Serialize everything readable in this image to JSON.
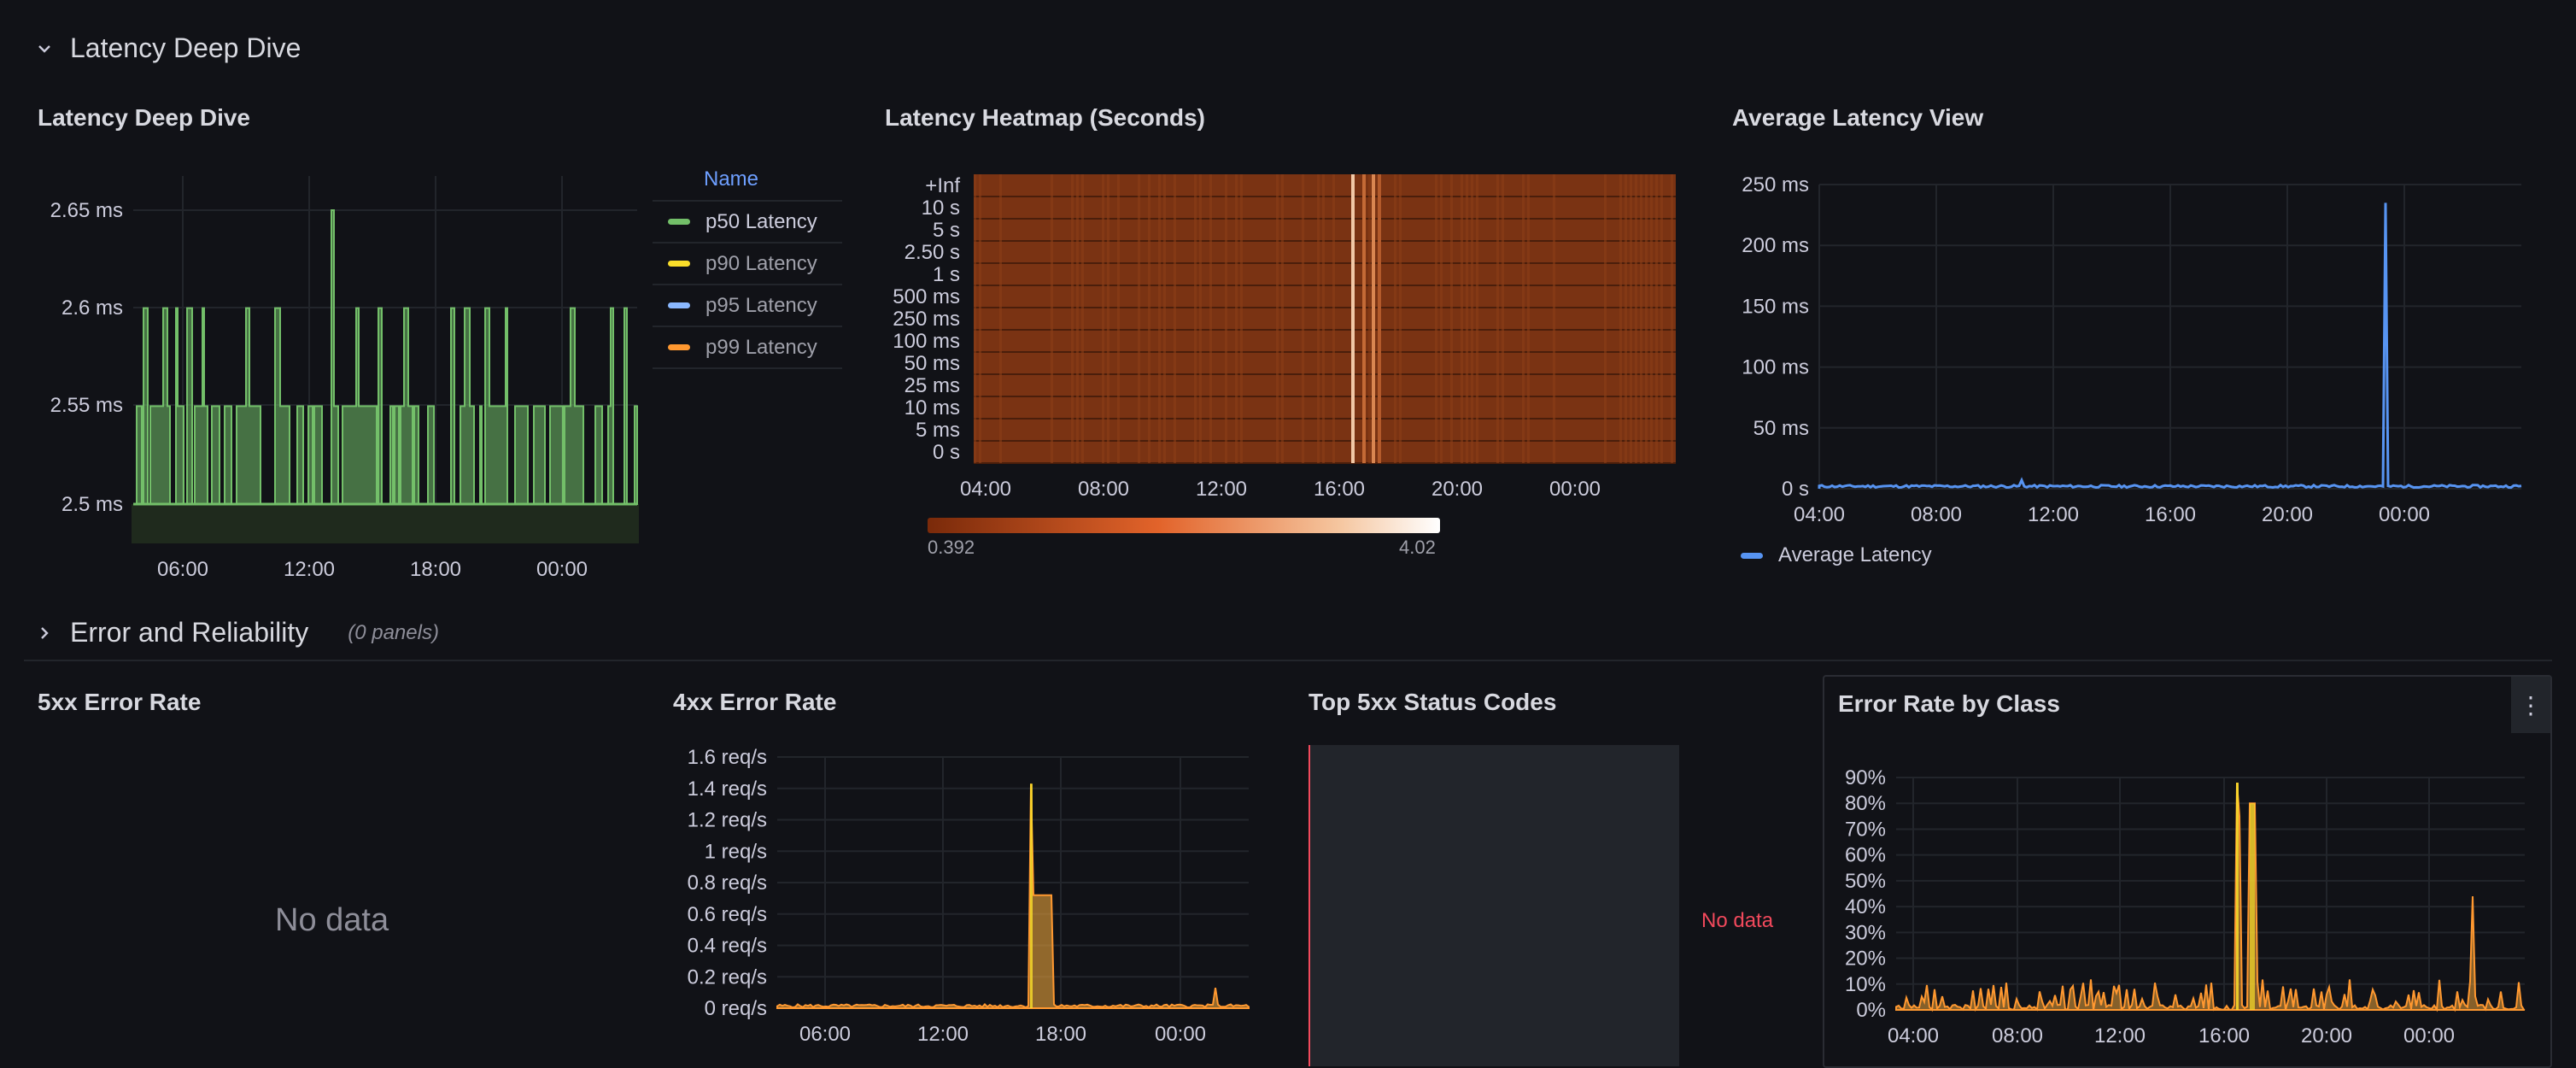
{
  "rows": [
    {
      "title": "Latency Deep Dive",
      "note": ""
    },
    {
      "title": "Error and Reliability",
      "note": "(0 panels)"
    }
  ],
  "panels": {
    "latency_deep_dive": {
      "title": "Latency Deep Dive",
      "legend_header": "Name",
      "legend": [
        {
          "name": "p50 Latency",
          "color": "#73bf69"
        },
        {
          "name": "p90 Latency",
          "color": "#fade2a"
        },
        {
          "name": "p95 Latency",
          "color": "#8ab8ff"
        },
        {
          "name": "p99 Latency",
          "color": "#ff9830"
        }
      ]
    },
    "heatmap": {
      "title": "Latency Heatmap (Seconds)",
      "scale_min": "0.392",
      "scale_max": "4.02"
    },
    "avg_latency": {
      "title": "Average Latency View",
      "legend": "Average Latency",
      "color": "#5794f2"
    },
    "err5xx": {
      "title": "5xx Error Rate",
      "nodata": "No data"
    },
    "err4xx": {
      "title": "4xx Error Rate"
    },
    "top5xx": {
      "title": "Top 5xx Status Codes",
      "nodata": "No data"
    },
    "err_class": {
      "title": "Error Rate by Class",
      "menu_icon": "kebab-menu-icon"
    }
  },
  "chart_data": [
    {
      "id": "latency_deep_dive",
      "type": "line",
      "unit": "ms",
      "y_ticks": [
        "2.65 ms",
        "2.6 ms",
        "2.55 ms",
        "2.5 ms"
      ],
      "x_ticks": [
        "06:00",
        "12:00",
        "18:00",
        "00:00"
      ],
      "ylim": [
        2.48,
        2.67
      ],
      "series": [
        {
          "name": "p50 Latency",
          "baseline": 2.5,
          "normal": 2.55,
          "spikes": [
            2.6,
            2.6,
            2.6,
            2.6,
            2.6,
            2.6,
            2.6,
            2.65,
            2.6,
            2.6,
            2.6,
            2.6,
            2.6,
            2.6,
            2.6
          ]
        }
      ]
    },
    {
      "id": "heatmap",
      "type": "heatmap",
      "y_ticks": [
        "+Inf",
        "10 s",
        "5 s",
        "2.50 s",
        "1 s",
        "500 ms",
        "250 ms",
        "100 ms",
        "50 ms",
        "25 ms",
        "10 ms",
        "5 ms",
        "0 s"
      ],
      "x_ticks": [
        "04:00",
        "08:00",
        "12:00",
        "16:00",
        "20:00",
        "00:00"
      ],
      "range": [
        0.392,
        4.02
      ]
    },
    {
      "id": "avg_latency",
      "type": "line",
      "y_ticks": [
        "250 ms",
        "200 ms",
        "150 ms",
        "100 ms",
        "50 ms",
        "0 s"
      ],
      "x_ticks": [
        "04:00",
        "08:00",
        "12:00",
        "16:00",
        "20:00",
        "00:00"
      ],
      "ylim": [
        0,
        250
      ],
      "series": [
        {
          "name": "Average Latency",
          "peak": 235
        }
      ]
    },
    {
      "id": "err4xx",
      "type": "line",
      "y_ticks": [
        "1.6 req/s",
        "1.4 req/s",
        "1.2 req/s",
        "1 req/s",
        "0.8 req/s",
        "0.6 req/s",
        "0.4 req/s",
        "0.2 req/s",
        "0 req/s"
      ],
      "x_ticks": [
        "06:00",
        "12:00",
        "18:00",
        "00:00"
      ],
      "ylim": [
        0,
        1.6
      ],
      "series": [
        {
          "name": "4xx",
          "peak": 1.43,
          "plateau": 0.72
        }
      ]
    },
    {
      "id": "err_class",
      "type": "line",
      "y_ticks": [
        "90%",
        "80%",
        "70%",
        "60%",
        "50%",
        "40%",
        "30%",
        "20%",
        "10%",
        "0%"
      ],
      "x_ticks": [
        "04:00",
        "08:00",
        "12:00",
        "16:00",
        "20:00",
        "00:00"
      ],
      "ylim": [
        0,
        100
      ],
      "series": [
        {
          "name": "class",
          "peak": 88,
          "second_peak": 44
        }
      ]
    }
  ]
}
